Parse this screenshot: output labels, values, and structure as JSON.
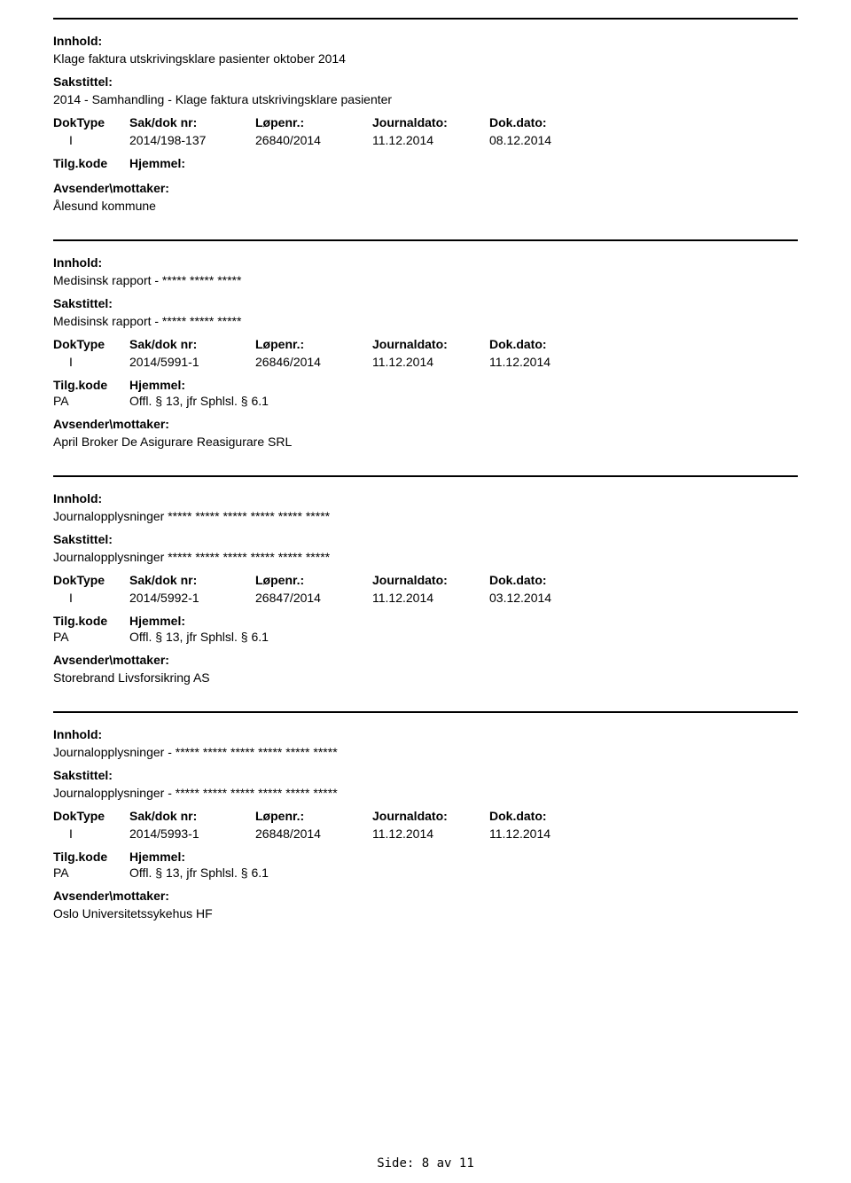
{
  "labels": {
    "innhold": "Innhold:",
    "sakstittel": "Sakstittel:",
    "doktype": "DokType",
    "sakdoknr": "Sak/dok nr:",
    "lopenr": "Løpenr.:",
    "journaldato": "Journaldato:",
    "dokdato": "Dok.dato:",
    "tilgkode": "Tilg.kode",
    "hjemmel": "Hjemmel:",
    "avsender": "Avsender\\mottaker:"
  },
  "entries": [
    {
      "innhold": "Klage faktura utskrivingsklare pasienter oktober 2014",
      "sakstittel": "2014 - Samhandling - Klage faktura utskrivingsklare pasienter",
      "doktype": "I",
      "sakdoknr": "2014/198-137",
      "lopenr": "26840/2014",
      "journaldato": "11.12.2014",
      "dokdato": "08.12.2014",
      "tilgkode": "",
      "hjemmel": "",
      "avsender": "Ålesund kommune"
    },
    {
      "innhold": "Medisinsk rapport - ***** ***** *****",
      "sakstittel": "Medisinsk rapport - ***** ***** *****",
      "doktype": "I",
      "sakdoknr": "2014/5991-1",
      "lopenr": "26846/2014",
      "journaldato": "11.12.2014",
      "dokdato": "11.12.2014",
      "tilgkode": "PA",
      "hjemmel": "Offl. § 13, jfr Sphlsl. § 6.1",
      "avsender": "April Broker De Asigurare Reasigurare SRL"
    },
    {
      "innhold": "Journalopplysninger ***** ***** ***** ***** ***** *****",
      "sakstittel": "Journalopplysninger ***** ***** ***** ***** ***** *****",
      "doktype": "I",
      "sakdoknr": "2014/5992-1",
      "lopenr": "26847/2014",
      "journaldato": "11.12.2014",
      "dokdato": "03.12.2014",
      "tilgkode": "PA",
      "hjemmel": "Offl. § 13, jfr Sphlsl. § 6.1",
      "avsender": "Storebrand Livsforsikring AS"
    },
    {
      "innhold": "Journalopplysninger - ***** ***** ***** ***** ***** *****",
      "sakstittel": "Journalopplysninger - ***** ***** ***** ***** ***** *****",
      "doktype": "I",
      "sakdoknr": "2014/5993-1",
      "lopenr": "26848/2014",
      "journaldato": "11.12.2014",
      "dokdato": "11.12.2014",
      "tilgkode": "PA",
      "hjemmel": "Offl. § 13, jfr Sphlsl. § 6.1",
      "avsender": "Oslo Universitetssykehus HF"
    }
  ],
  "footer": "Side:  8 av  11",
  "colors": {
    "text": "#000000",
    "background": "#ffffff",
    "border": "#000000"
  },
  "typography": {
    "body_fontsize": 14,
    "font_family": "Verdana, Arial, sans-serif"
  }
}
